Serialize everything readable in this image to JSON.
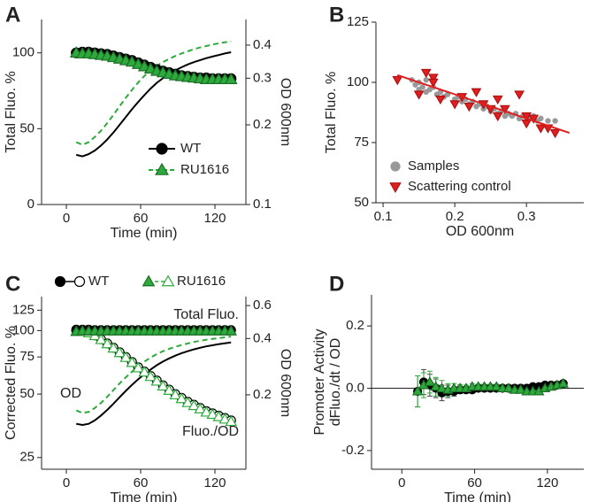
{
  "chart_data": [
    {
      "type": "line",
      "label": "A",
      "x_label": "Time (min)",
      "y_label": "Total Fluo. %",
      "y2_label": "OD 600nm",
      "xlim": [
        -20,
        145
      ],
      "xticks": [
        0,
        60,
        120
      ],
      "ylim": [
        0,
        122
      ],
      "yticks": [
        0,
        50,
        100
      ],
      "y2lim": [
        0.1,
        0.5
      ],
      "y2log": true,
      "y2ticks": [
        0.1,
        0.2,
        0.3,
        0.4
      ],
      "legend": "lower-right",
      "x": [
        8,
        13,
        18,
        23,
        28,
        33,
        38,
        43,
        48,
        53,
        58,
        63,
        68,
        73,
        78,
        83,
        88,
        93,
        98,
        103,
        108,
        113,
        118,
        123,
        128,
        133
      ],
      "series": [
        {
          "name": "WT",
          "color": "#000000",
          "marker": "circle",
          "dash": false,
          "values": [
            100,
            100.5,
            100.5,
            100,
            99.5,
            99,
            98,
            97,
            96,
            95,
            93.5,
            92,
            90.5,
            89,
            88,
            87,
            86,
            85,
            84.5,
            84,
            83.5,
            83.5,
            83,
            83,
            83,
            83
          ],
          "y2_values": [
            0.154,
            0.152,
            0.155,
            0.16,
            0.167,
            0.176,
            0.187,
            0.2,
            0.214,
            0.229,
            0.244,
            0.259,
            0.274,
            0.288,
            0.3,
            0.311,
            0.321,
            0.33,
            0.338,
            0.345,
            0.351,
            0.357,
            0.362,
            0.367,
            0.372,
            0.376
          ]
        },
        {
          "name": "RU1616",
          "color": "#2eaa3c",
          "marker": "triangle",
          "dash": true,
          "values": [
            100,
            99.5,
            99.5,
            99,
            98.5,
            98,
            97,
            96,
            95,
            94,
            92.5,
            91,
            89.5,
            88,
            87,
            86,
            85,
            84.5,
            84,
            83.5,
            83,
            82.5,
            82.5,
            82.5,
            82.5,
            82.5
          ],
          "y2_values": [
            0.172,
            0.168,
            0.172,
            0.18,
            0.19,
            0.203,
            0.218,
            0.235,
            0.253,
            0.271,
            0.289,
            0.306,
            0.321,
            0.334,
            0.345,
            0.355,
            0.364,
            0.372,
            0.379,
            0.386,
            0.392,
            0.397,
            0.402,
            0.406,
            0.41,
            0.413
          ]
        }
      ]
    },
    {
      "type": "scatter",
      "label": "B",
      "x_label": "OD 600nm",
      "y_label": "Total Fluo. %",
      "xlim": [
        0.09,
        0.38
      ],
      "xticks": [
        0.1,
        0.2,
        0.3
      ],
      "ylim": [
        50,
        125
      ],
      "yticks": [
        50,
        75,
        100,
        125
      ],
      "legend": "lower-left",
      "series": [
        {
          "name": "Samples",
          "color": "#999999",
          "marker": "circle",
          "x": [
            0.14,
            0.145,
            0.15,
            0.15,
            0.155,
            0.16,
            0.16,
            0.165,
            0.17,
            0.175,
            0.18,
            0.185,
            0.19,
            0.2,
            0.205,
            0.21,
            0.215,
            0.22,
            0.225,
            0.23,
            0.235,
            0.24,
            0.245,
            0.25,
            0.255,
            0.26,
            0.265,
            0.27,
            0.275,
            0.28,
            0.285,
            0.29,
            0.295,
            0.3,
            0.305,
            0.31,
            0.315,
            0.32,
            0.33,
            0.34
          ],
          "values": [
            101,
            99,
            100,
            97,
            98,
            101,
            96,
            97,
            98,
            95,
            96,
            94,
            95,
            93,
            94,
            92,
            93,
            91,
            92,
            90,
            91,
            89,
            90,
            88,
            89,
            87,
            88,
            86,
            87,
            86,
            87,
            85,
            86,
            84,
            85,
            86,
            84,
            85,
            84,
            84
          ]
        },
        {
          "name": "Scattering control",
          "color": "#e02020",
          "marker": "triangle-down",
          "x": [
            0.12,
            0.15,
            0.16,
            0.17,
            0.17,
            0.18,
            0.2,
            0.21,
            0.22,
            0.23,
            0.24,
            0.25,
            0.26,
            0.26,
            0.27,
            0.29,
            0.3,
            0.3,
            0.31,
            0.32,
            0.33,
            0.34
          ],
          "values": [
            101,
            95,
            104,
            102,
            100,
            93,
            91,
            94,
            90,
            96,
            91,
            89,
            93,
            86,
            89,
            95,
            83,
            86,
            85,
            81,
            81,
            79
          ]
        }
      ],
      "fit": {
        "color": "#e02020",
        "x": [
          0.12,
          0.36
        ],
        "y": [
          103,
          79
        ]
      }
    },
    {
      "type": "line",
      "label": "C",
      "x_label": "Time (min)",
      "y_label": "Corrected Fluo. %",
      "y2_label": "OD 600nm",
      "xlim": [
        -20,
        145
      ],
      "xticks": [
        0,
        60,
        120
      ],
      "ylim": [
        22,
        145
      ],
      "ylog": true,
      "yticks": [
        25,
        50,
        75,
        100,
        125
      ],
      "y2lim": [
        0.08,
        0.67
      ],
      "y2log": true,
      "y2ticks": [
        0.2,
        0.4,
        0.6
      ],
      "legend": "top",
      "annotations": [
        "Total Fluo.",
        "OD",
        "Fluo./OD"
      ],
      "x": [
        8,
        13,
        18,
        23,
        28,
        33,
        38,
        43,
        48,
        53,
        58,
        63,
        68,
        73,
        78,
        83,
        88,
        93,
        98,
        103,
        108,
        113,
        118,
        123,
        128,
        133
      ],
      "series": [
        {
          "name": "WT",
          "color": "#000000",
          "marker": "circle",
          "dash": false,
          "values": [
            101,
            101,
            101,
            100.5,
            100.5,
            100.5,
            100.5,
            100.5,
            100.5,
            100.5,
            100.5,
            100.5,
            100.5,
            100.5,
            100.5,
            100.5,
            100.5,
            100.5,
            100.5,
            100.5,
            100.5,
            100.5,
            100.5,
            100.5,
            100.5,
            100.5
          ],
          "values_open": [
            100,
            100,
            98,
            95,
            91,
            87,
            83,
            79,
            75,
            71,
            67,
            64,
            61,
            58,
            55,
            52.5,
            50,
            48,
            46,
            44.5,
            43,
            41.5,
            40.5,
            39.5,
            38.5,
            37.5
          ],
          "y2_values": [
            0.14,
            0.138,
            0.14,
            0.146,
            0.155,
            0.166,
            0.179,
            0.194,
            0.21,
            0.226,
            0.242,
            0.258,
            0.273,
            0.288,
            0.301,
            0.313,
            0.324,
            0.334,
            0.342,
            0.35,
            0.357,
            0.363,
            0.368,
            0.373,
            0.377,
            0.381
          ]
        },
        {
          "name": "RU1616",
          "color": "#2eaa3c",
          "marker": "triangle",
          "dash": true,
          "values": [
            99,
            99.5,
            99.5,
            99.5,
            99.5,
            99.5,
            99.5,
            99.5,
            99.5,
            99.5,
            99.5,
            99.5,
            99.5,
            99.5,
            99.5,
            99.5,
            99.5,
            99.5,
            99.5,
            99.5,
            99.5,
            99.5,
            99.5,
            99.5,
            99.5,
            99.5
          ],
          "values_open": [
            99,
            99.5,
            97.5,
            94.5,
            90.5,
            86.5,
            82.5,
            78.5,
            74.5,
            70.5,
            66.5,
            63.5,
            60.5,
            57.5,
            54.5,
            52,
            49.5,
            47.5,
            45.5,
            44,
            42.5,
            41,
            40,
            39,
            38,
            37
          ],
          "y2_values": [
            0.165,
            0.16,
            0.162,
            0.17,
            0.181,
            0.195,
            0.212,
            0.23,
            0.248,
            0.266,
            0.284,
            0.301,
            0.316,
            0.33,
            0.342,
            0.352,
            0.361,
            0.369,
            0.376,
            0.383,
            0.389,
            0.394,
            0.398,
            0.402,
            0.406,
            0.41
          ]
        }
      ]
    },
    {
      "type": "errorbar",
      "label": "D",
      "x_label": "Time (min)",
      "y_label": [
        "Promoter Activity",
        "dFluo./dt / OD"
      ],
      "xlim": [
        -25,
        150
      ],
      "xticks": [
        0,
        60,
        120
      ],
      "ylim": [
        -0.26,
        0.3
      ],
      "yticks": [
        -0.2,
        {
          "value": 0,
          "label": "0.0"
        },
        0.2
      ],
      "zero_line": true,
      "x": [
        13,
        18,
        23,
        28,
        33,
        38,
        43,
        48,
        53,
        58,
        63,
        68,
        73,
        78,
        83,
        88,
        93,
        98,
        103,
        108,
        113,
        118,
        123,
        128,
        133
      ],
      "series": [
        {
          "name": "WT",
          "color": "#000000",
          "marker": "circle",
          "values": [
            -0.01,
            0.02,
            0.01,
            0.0,
            -0.015,
            -0.01,
            -0.01,
            -0.005,
            -0.005,
            -0.005,
            0,
            0,
            0,
            0,
            0,
            0,
            0,
            0,
            0,
            0.005,
            0.005,
            0.01,
            0.01,
            0.01,
            0.015
          ],
          "errors": [
            0.05,
            0.04,
            0.035,
            0.03,
            0.025,
            0.02,
            0.015,
            0.012,
            0.01,
            0.01,
            0.008,
            0.008,
            0.008,
            0.008,
            0.008,
            0.008,
            0.008,
            0.008,
            0.008,
            0.008,
            0.008,
            0.008,
            0.008,
            0.008,
            0.008
          ]
        },
        {
          "name": "RU1616",
          "color": "#2eaa3c",
          "marker": "triangle",
          "values": [
            -0.01,
            0.01,
            0.02,
            0.005,
            0,
            -0.005,
            0,
            0,
            0,
            0.005,
            0.005,
            0.005,
            0.005,
            0.005,
            0,
            0,
            -0.005,
            -0.005,
            -0.01,
            -0.01,
            -0.01,
            0,
            0.005,
            0.01,
            0.015
          ],
          "errors": [
            0.05,
            0.04,
            0.035,
            0.03,
            0.025,
            0.02,
            0.015,
            0.012,
            0.01,
            0.01,
            0.008,
            0.008,
            0.008,
            0.008,
            0.008,
            0.008,
            0.008,
            0.008,
            0.008,
            0.008,
            0.008,
            0.008,
            0.008,
            0.008,
            0.008
          ]
        }
      ]
    }
  ]
}
